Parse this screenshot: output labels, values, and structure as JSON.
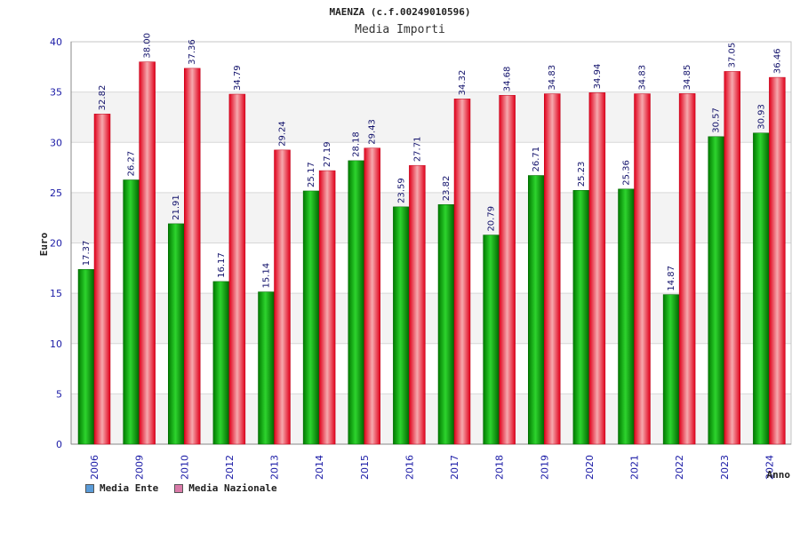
{
  "chart_data": {
    "type": "bar",
    "title": "MAENZA (c.f.00249010596)",
    "subtitle": "Media Importi",
    "xlabel": "Anno",
    "ylabel": "Euro",
    "ylim": [
      0,
      40
    ],
    "yticks": [
      0,
      5,
      10,
      15,
      20,
      25,
      30,
      35,
      40
    ],
    "categories": [
      "2006",
      "2009",
      "2010",
      "2012",
      "2013",
      "2014",
      "2015",
      "2016",
      "2017",
      "2018",
      "2019",
      "2020",
      "2021",
      "2022",
      "2023",
      "2024"
    ],
    "series": [
      {
        "name": "Media Ente",
        "values": [
          17.37,
          26.27,
          21.91,
          16.17,
          15.14,
          25.17,
          28.18,
          23.59,
          23.82,
          20.79,
          26.71,
          25.23,
          25.36,
          14.87,
          30.57,
          30.93
        ],
        "labels": [
          "17.37",
          "26.27",
          "21.91",
          "16.17",
          "15.14",
          "25.17",
          "28.18",
          "23.59",
          "23.82",
          "20.79",
          "26.71",
          "25.23",
          "25.36",
          "14.87",
          "30.57",
          "30.93"
        ]
      },
      {
        "name": "Media Nazionale",
        "values": [
          32.82,
          38.0,
          37.36,
          34.79,
          29.24,
          27.19,
          29.43,
          27.71,
          34.32,
          34.68,
          34.83,
          34.94,
          34.83,
          34.85,
          37.05,
          36.46
        ],
        "labels": [
          "32.82",
          "38.00",
          "37.36",
          "34.79",
          "29.24",
          "27.19",
          "29.43",
          "27.71",
          "34.32",
          "34.68",
          "34.83",
          "34.94",
          "34.83",
          "34.85",
          "37.05",
          "36.46"
        ]
      }
    ],
    "legend": [
      {
        "label": "Media Ente",
        "color": "#5a9bd8"
      },
      {
        "label": "Media Nazionale",
        "color": "#d97aa8"
      }
    ],
    "legend_position": "bottom-left",
    "grid": true
  }
}
